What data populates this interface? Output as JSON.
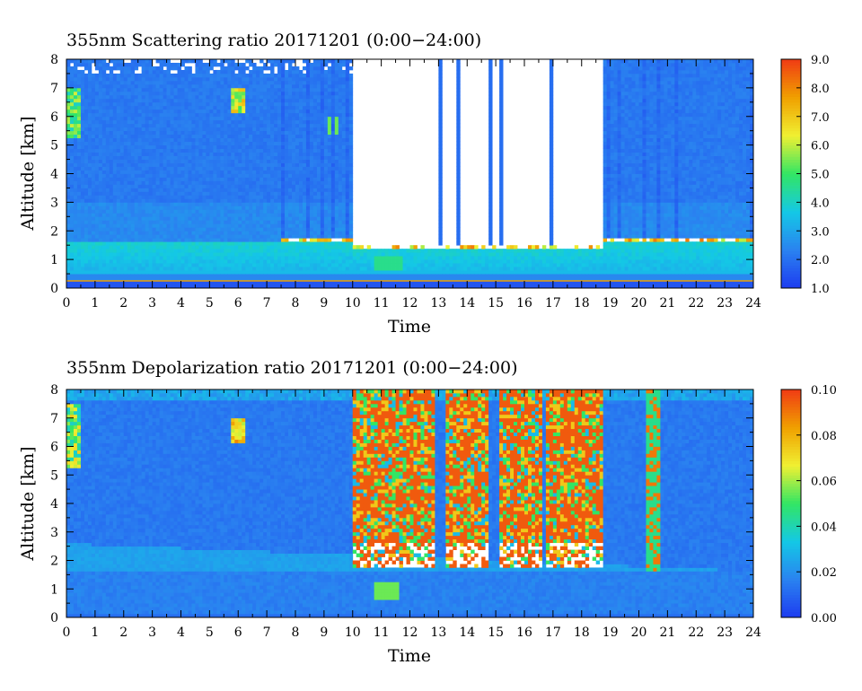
{
  "chart_data": [
    {
      "type": "heatmap",
      "title": "355nm Scattering ratio  20171201 (0:00−24:00)",
      "xlabel": "Time",
      "ylabel": "Altitude [km]",
      "xlim": [
        0,
        24
      ],
      "ylim": [
        0,
        8
      ],
      "x_ticks": [
        "0",
        "1",
        "2",
        "3",
        "4",
        "5",
        "6",
        "7",
        "8",
        "9",
        "10",
        "11",
        "12",
        "13",
        "14",
        "15",
        "16",
        "17",
        "18",
        "19",
        "20",
        "21",
        "22",
        "23",
        "24"
      ],
      "y_ticks": [
        "0",
        "1",
        "2",
        "3",
        "4",
        "5",
        "6",
        "7",
        "8"
      ],
      "colorbar": {
        "min": 1.0,
        "max": 9.0,
        "ticks": [
          "1.0",
          "2.0",
          "3.0",
          "4.0",
          "5.0",
          "6.0",
          "7.0",
          "8.0",
          "9.0"
        ],
        "colors": [
          "#1e3cf0",
          "#2a82f0",
          "#14c8e6",
          "#32e664",
          "#f0f032",
          "#f0a000",
          "#f03c14"
        ]
      },
      "low_cloud_top_km": 1.6,
      "cloud_free_periods_h": [
        [
          10.0,
          18.8
        ]
      ],
      "cloud_columns_h": [
        7.6,
        8.4,
        8.9,
        9.3,
        9.8,
        13.1,
        13.7,
        14.8,
        15.2,
        16.9,
        18.9,
        19.3,
        20.2,
        20.7,
        21.3,
        23.9
      ],
      "grid": false,
      "legend": "none"
    },
    {
      "type": "heatmap",
      "title": "355nm Depolarization ratio  20171201 (0:00−24:00)",
      "xlabel": "Time",
      "ylabel": "Altitude [km]",
      "xlim": [
        0,
        24
      ],
      "ylim": [
        0,
        8
      ],
      "x_ticks": [
        "0",
        "1",
        "2",
        "3",
        "4",
        "5",
        "6",
        "7",
        "8",
        "9",
        "10",
        "11",
        "12",
        "13",
        "14",
        "15",
        "16",
        "17",
        "18",
        "19",
        "20",
        "21",
        "22",
        "23",
        "24"
      ],
      "y_ticks": [
        "0",
        "1",
        "2",
        "3",
        "4",
        "5",
        "6",
        "7",
        "8"
      ],
      "colorbar": {
        "min": 0.0,
        "max": 0.1,
        "ticks": [
          "0.00",
          "0.02",
          "0.04",
          "0.06",
          "0.08",
          "0.10"
        ],
        "colors": [
          "#1e3cf0",
          "#2a82f0",
          "#14c8e6",
          "#32e664",
          "#f0f032",
          "#f0a000",
          "#f03c14"
        ]
      },
      "noisy_high_depol_periods_h": [
        [
          10.0,
          12.9
        ],
        [
          13.3,
          14.7
        ],
        [
          15.1,
          16.6
        ],
        [
          16.8,
          18.8
        ]
      ],
      "grid": false,
      "legend": "none"
    }
  ]
}
